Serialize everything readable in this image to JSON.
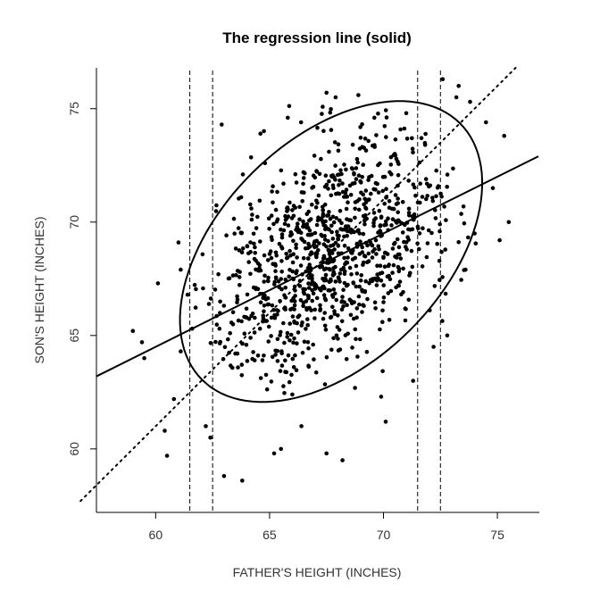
{
  "chart_data": {
    "type": "scatter",
    "title": "The regression line (solid)",
    "xlabel": "FATHER'S HEIGHT (INCHES)",
    "ylabel": "SON'S HEIGHT (INCHES)",
    "xlim": [
      57.4,
      76.8
    ],
    "ylim": [
      57.2,
      76.8
    ],
    "xticks": [
      60,
      65,
      70,
      75
    ],
    "yticks": [
      60,
      65,
      70,
      75
    ],
    "grid": false,
    "regression_line": {
      "slope": 0.5,
      "intercept": 34.5
    },
    "sd_line": {
      "slope": 1.0,
      "intercept": 1.0
    },
    "ellipse": {
      "center": [
        67.7,
        68.7
      ],
      "semi_axes": [
        8.0,
        4.9
      ],
      "angle_deg": 45
    },
    "vertical_lines": [
      61.5,
      62.5,
      71.5,
      72.5
    ],
    "outlier_points": [
      [
        59.0,
        65.2
      ],
      [
        59.4,
        64.7
      ],
      [
        59.5,
        64.0
      ],
      [
        60.1,
        67.3
      ],
      [
        60.4,
        60.8
      ],
      [
        60.5,
        59.7
      ],
      [
        60.8,
        62.2
      ],
      [
        61.0,
        69.1
      ],
      [
        61.1,
        67.9
      ],
      [
        61.4,
        66.8
      ],
      [
        61.1,
        64.3
      ],
      [
        62.2,
        61.0
      ],
      [
        62.4,
        60.5
      ],
      [
        63.0,
        58.8
      ],
      [
        63.8,
        58.6
      ],
      [
        62.9,
        74.3
      ],
      [
        64.6,
        73.9
      ],
      [
        64.8,
        72.6
      ],
      [
        65.2,
        59.8
      ],
      [
        65.5,
        60.0
      ],
      [
        66.4,
        61.0
      ],
      [
        67.5,
        59.8
      ],
      [
        68.2,
        59.5
      ],
      [
        65.8,
        74.6
      ],
      [
        67.5,
        75.7
      ],
      [
        67.9,
        75.5
      ],
      [
        68.9,
        75.6
      ],
      [
        72.6,
        76.3
      ],
      [
        73.3,
        76.0
      ],
      [
        73.2,
        75.5
      ],
      [
        73.8,
        75.3
      ],
      [
        74.5,
        74.4
      ],
      [
        74.8,
        71.5
      ],
      [
        75.1,
        69.2
      ],
      [
        75.3,
        73.8
      ],
      [
        75.5,
        70.0
      ],
      [
        72.8,
        65.0
      ],
      [
        72.2,
        64.5
      ],
      [
        71.3,
        63.0
      ],
      [
        70.1,
        61.2
      ],
      [
        69.9,
        62.3
      ],
      [
        66.0,
        62.4
      ],
      [
        63.5,
        64.2
      ],
      [
        62.8,
        65.3
      ],
      [
        64.2,
        70.6
      ],
      [
        61.6,
        65.3
      ],
      [
        73.6,
        67.9
      ],
      [
        74.0,
        69.5
      ],
      [
        71.0,
        74.8
      ],
      [
        69.6,
        74.6
      ]
    ],
    "cloud": {
      "count": 1010,
      "mean_father": 67.7,
      "mean_son": 68.7,
      "sd_father": 2.74,
      "sd_son": 2.81,
      "correlation": 0.5,
      "clip_radius_sd": 2.3
    }
  }
}
